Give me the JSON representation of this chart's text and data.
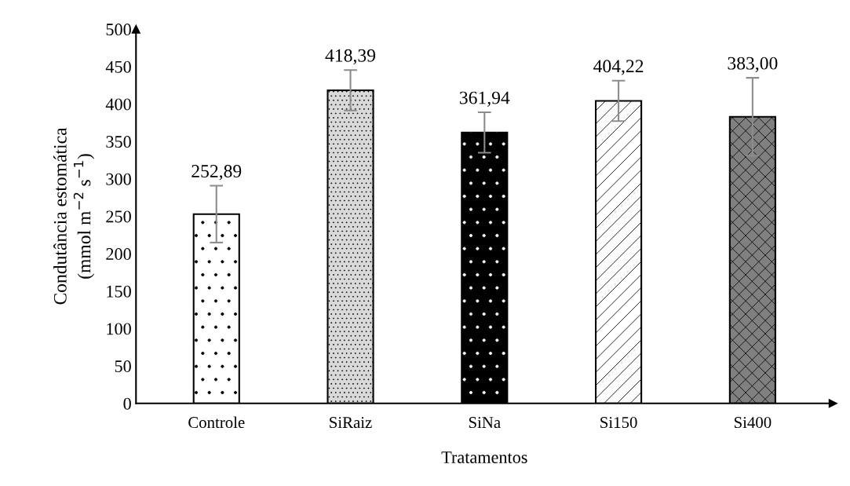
{
  "chart_data": {
    "type": "bar",
    "xlabel": "Tratamentos",
    "ylabel": "Condutância estomática\n(mmol m$^{−2}$ s$^{−1}$)",
    "categories": [
      "Controle",
      "SiRaiz",
      "SiNa",
      "Si150",
      "Si400"
    ],
    "values": [
      252.89,
      418.39,
      361.94,
      404.22,
      383.0
    ],
    "value_labels": [
      "252,89",
      "418,39",
      "361,94",
      "404,22",
      "383,00"
    ],
    "errors": [
      38,
      27,
      27,
      27,
      52
    ],
    "colors": [
      "#ffffff",
      "#d9d9d9",
      "#000000",
      "#ffffff",
      "#808080"
    ],
    "ylim": [
      0,
      500
    ],
    "yticks": [
      0,
      50,
      100,
      150,
      200,
      250,
      300,
      350,
      400,
      450,
      500
    ],
    "grid": false,
    "legend": false
  }
}
